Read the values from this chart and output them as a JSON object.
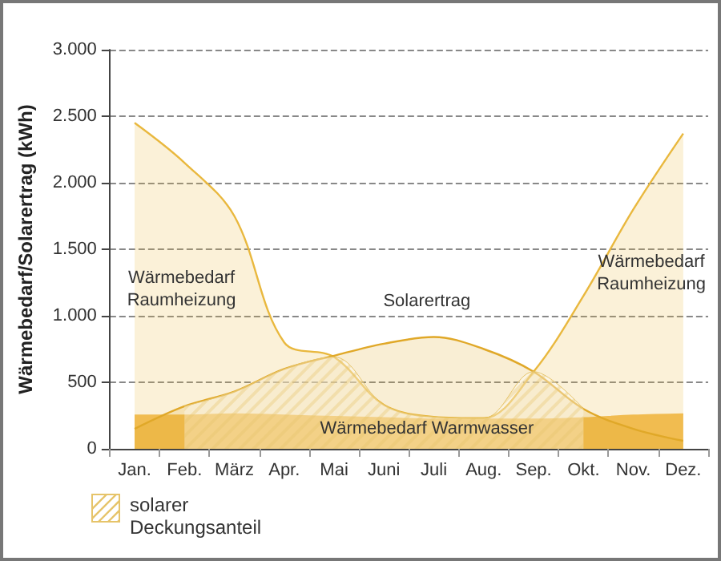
{
  "chart_data": {
    "type": "area",
    "ylabel": "Wärmebedarf/Solarertrag (kWh)",
    "categories": [
      "Jan.",
      "Feb.",
      "März",
      "Apr.",
      "Mai",
      "Juni",
      "Juli",
      "Aug.",
      "Sep.",
      "Okt.",
      "Nov.",
      "Dez."
    ],
    "series": [
      {
        "color": "#f3bd55",
        "values": [
          250,
          250,
          260,
          250,
          240,
          230,
          220,
          220,
          220,
          230,
          250,
          260
        ]
      },
      {
        "color": "#e9b83e",
        "values": [
          2450,
          2150,
          1750,
          800,
          690,
          330,
          240,
          230,
          580,
          1150,
          1800,
          2370
        ]
      },
      {
        "color": "#e0a828",
        "values": [
          150,
          320,
          430,
          600,
          700,
          790,
          840,
          750,
          580,
          300,
          150,
          60
        ]
      },
      {
        "name": "solarer\nDeckungsanteil",
        "color": "#e6c46a",
        "values": [
          null,
          320,
          430,
          600,
          690,
          330,
          240,
          230,
          580,
          300,
          null,
          null
        ]
      }
    ],
    "ylim": [
      0,
      3000
    ],
    "yticks": [
      {
        "value": 0,
        "label": "0"
      },
      {
        "value": 500,
        "label": "500"
      },
      {
        "value": 1000,
        "label": "1.000"
      },
      {
        "value": 1500,
        "label": "1.500"
      },
      {
        "value": 2000,
        "label": "2.000"
      },
      {
        "value": 2500,
        "label": "2.500"
      },
      {
        "value": 3000,
        "label": "3.000"
      }
    ],
    "grid": "y",
    "legend": "bottom left",
    "line_style": "solid",
    "marker": "none",
    "annotations": [
      "Wärmebedarf\nRaumheizung",
      "Wärmebedarf\nRaumheizung",
      "Solarertrag",
      "Wärmebedarf Warmwasser"
    ]
  }
}
